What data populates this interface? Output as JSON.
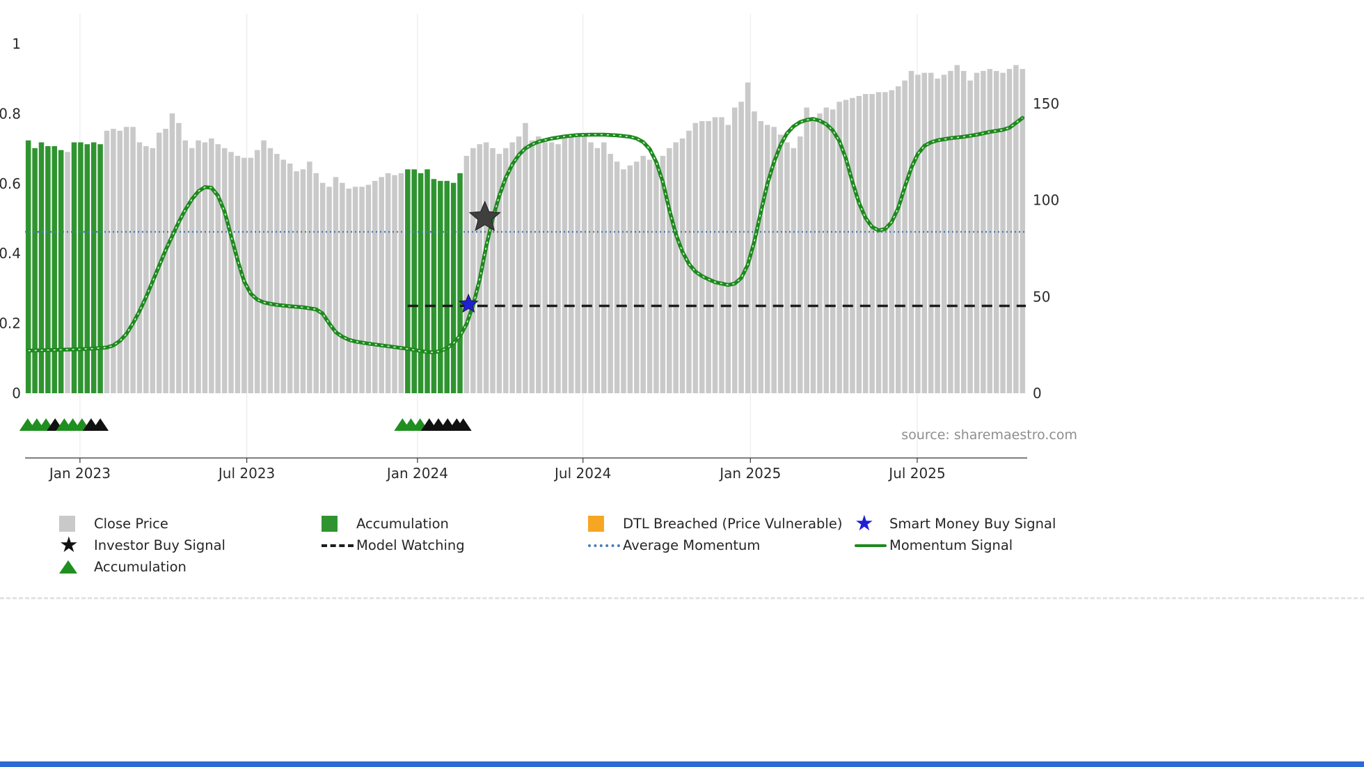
{
  "page": {
    "source_text": "source: sharemaestro.com",
    "background": "#ffffff",
    "bottom_bar_color": "#2b6bd4"
  },
  "chart_data": {
    "type": "bar",
    "title": "",
    "description": "Weekly close price bars with momentum signal overlay and buy-signal markers",
    "y_axis_left": {
      "ticks": [
        0,
        0.2,
        0.4,
        0.6,
        0.8,
        1
      ],
      "range": [
        0,
        1.105
      ]
    },
    "y_axis_right": {
      "ticks": [
        0,
        50,
        100,
        150
      ],
      "range": [
        0,
        203
      ]
    },
    "x_axis": {
      "ticks": [
        {
          "label": "Jan 2023",
          "index": 8.4
        },
        {
          "label": "Jul 2023",
          "index": 33.9
        },
        {
          "label": "Jan 2024",
          "index": 60.0
        },
        {
          "label": "Jul 2024",
          "index": 85.3
        },
        {
          "label": "Jan 2025",
          "index": 110.9
        },
        {
          "label": "Jul 2025",
          "index": 136.4
        }
      ]
    },
    "close_price": {
      "color": "#c9c9c9",
      "values": [
        131,
        127,
        130,
        128,
        128,
        126,
        125,
        130,
        130,
        129,
        130,
        129,
        136,
        137,
        136,
        138,
        138,
        130,
        128,
        127,
        135,
        137,
        145,
        140,
        131,
        127,
        131,
        130,
        132,
        129,
        127,
        125,
        123,
        122,
        122,
        126,
        131,
        127,
        124,
        121,
        119,
        115,
        116,
        120,
        114,
        109,
        107,
        112,
        109,
        106,
        107,
        107,
        108,
        110,
        112,
        114,
        113,
        114,
        116,
        116,
        114,
        116,
        111,
        110,
        110,
        109,
        114,
        123,
        127,
        129,
        130,
        127,
        124,
        127,
        130,
        133,
        140,
        131,
        133,
        130,
        130,
        129,
        133,
        134,
        134,
        133,
        130,
        127,
        130,
        124,
        120,
        116,
        118,
        120,
        123,
        121,
        120,
        123,
        127,
        130,
        132,
        136,
        140,
        141,
        141,
        143,
        143,
        139,
        148,
        151,
        161,
        146,
        141,
        139,
        138,
        134,
        130,
        127,
        133,
        148,
        142,
        145,
        148,
        147,
        151,
        152,
        153,
        154,
        155,
        155,
        156,
        156,
        157,
        159,
        162,
        167,
        165,
        166,
        166,
        163,
        165,
        167,
        170,
        167,
        162,
        166,
        167,
        168,
        167,
        166,
        168,
        170,
        168
      ]
    },
    "accumulation_bars": {
      "color": "#2f9430",
      "indices": [
        0,
        1,
        2,
        3,
        4,
        5,
        7,
        8,
        9,
        10,
        11,
        58,
        59,
        60,
        61,
        62,
        63,
        64,
        65,
        66
      ]
    },
    "momentum_signal": {
      "color": "#1d8a1d",
      "points": [
        [
          0,
          0.122
        ],
        [
          2,
          0.123
        ],
        [
          4,
          0.124
        ],
        [
          6,
          0.125
        ],
        [
          8,
          0.126
        ],
        [
          10,
          0.128
        ],
        [
          12,
          0.131
        ],
        [
          13,
          0.137
        ],
        [
          14,
          0.15
        ],
        [
          15,
          0.17
        ],
        [
          16,
          0.2
        ],
        [
          17,
          0.235
        ],
        [
          18,
          0.275
        ],
        [
          19,
          0.32
        ],
        [
          20,
          0.365
        ],
        [
          21,
          0.41
        ],
        [
          22,
          0.45
        ],
        [
          23,
          0.49
        ],
        [
          24,
          0.525
        ],
        [
          25,
          0.555
        ],
        [
          26,
          0.578
        ],
        [
          27,
          0.59
        ],
        [
          28,
          0.588
        ],
        [
          29,
          0.565
        ],
        [
          30,
          0.52
        ],
        [
          31,
          0.45
        ],
        [
          32,
          0.38
        ],
        [
          33,
          0.32
        ],
        [
          34,
          0.285
        ],
        [
          35,
          0.268
        ],
        [
          36,
          0.26
        ],
        [
          37,
          0.256
        ],
        [
          38,
          0.253
        ],
        [
          40,
          0.249
        ],
        [
          42,
          0.246
        ],
        [
          44,
          0.24
        ],
        [
          45,
          0.228
        ],
        [
          46,
          0.2
        ],
        [
          47,
          0.175
        ],
        [
          48,
          0.162
        ],
        [
          49,
          0.153
        ],
        [
          50,
          0.148
        ],
        [
          52,
          0.142
        ],
        [
          54,
          0.137
        ],
        [
          56,
          0.132
        ],
        [
          58,
          0.127
        ],
        [
          60,
          0.121
        ],
        [
          61,
          0.118
        ],
        [
          62,
          0.117
        ],
        [
          63,
          0.121
        ],
        [
          64,
          0.129
        ],
        [
          65,
          0.143
        ],
        [
          66,
          0.164
        ],
        [
          67,
          0.198
        ],
        [
          68,
          0.252
        ],
        [
          69,
          0.325
        ],
        [
          70,
          0.42
        ],
        [
          71,
          0.5
        ],
        [
          72,
          0.565
        ],
        [
          73,
          0.617
        ],
        [
          74,
          0.655
        ],
        [
          75,
          0.682
        ],
        [
          76,
          0.701
        ],
        [
          77,
          0.712
        ],
        [
          78,
          0.72
        ],
        [
          80,
          0.729
        ],
        [
          82,
          0.735
        ],
        [
          84,
          0.739
        ],
        [
          86,
          0.74
        ],
        [
          88,
          0.74
        ],
        [
          90,
          0.738
        ],
        [
          92,
          0.734
        ],
        [
          93,
          0.729
        ],
        [
          94,
          0.719
        ],
        [
          95,
          0.699
        ],
        [
          96,
          0.662
        ],
        [
          97,
          0.605
        ],
        [
          98,
          0.525
        ],
        [
          99,
          0.455
        ],
        [
          100,
          0.405
        ],
        [
          101,
          0.37
        ],
        [
          102,
          0.348
        ],
        [
          103,
          0.335
        ],
        [
          104,
          0.326
        ],
        [
          105,
          0.318
        ],
        [
          106,
          0.314
        ],
        [
          107,
          0.31
        ],
        [
          108,
          0.314
        ],
        [
          109,
          0.33
        ],
        [
          110,
          0.368
        ],
        [
          111,
          0.435
        ],
        [
          112,
          0.52
        ],
        [
          113,
          0.6
        ],
        [
          114,
          0.662
        ],
        [
          115,
          0.71
        ],
        [
          116,
          0.744
        ],
        [
          117,
          0.764
        ],
        [
          118,
          0.776
        ],
        [
          119,
          0.782
        ],
        [
          120,
          0.785
        ],
        [
          121,
          0.78
        ],
        [
          122,
          0.77
        ],
        [
          123,
          0.752
        ],
        [
          124,
          0.722
        ],
        [
          125,
          0.672
        ],
        [
          126,
          0.605
        ],
        [
          127,
          0.545
        ],
        [
          128,
          0.502
        ],
        [
          129,
          0.476
        ],
        [
          130,
          0.466
        ],
        [
          131,
          0.47
        ],
        [
          132,
          0.49
        ],
        [
          133,
          0.53
        ],
        [
          134,
          0.59
        ],
        [
          135,
          0.645
        ],
        [
          136,
          0.685
        ],
        [
          137,
          0.708
        ],
        [
          138,
          0.718
        ],
        [
          139,
          0.724
        ],
        [
          141,
          0.73
        ],
        [
          143,
          0.734
        ],
        [
          145,
          0.74
        ],
        [
          147,
          0.748
        ],
        [
          149,
          0.754
        ],
        [
          150,
          0.76
        ],
        [
          151,
          0.774
        ],
        [
          152,
          0.788
        ]
      ]
    },
    "average_momentum": {
      "color": "#4a7fb5",
      "value": 0.462
    },
    "model_watching": {
      "color": "#1c1c1c",
      "value": 0.25,
      "start_index": 58.5
    },
    "signals": [
      {
        "key": "investor-buy-signal",
        "marker": "star",
        "color": "#3f3f3f",
        "index": 69.8,
        "value": 0.503,
        "size": 23
      },
      {
        "key": "smart-money-buy-signal",
        "marker": "star",
        "color": "#1f1fd6",
        "index": 67.3,
        "value": 0.255,
        "size": 14
      }
    ],
    "accumulation_markers": {
      "green_color": "#1f8f1f",
      "black_color": "#111111",
      "markers": [
        {
          "index": 0.4,
          "color": "green"
        },
        {
          "index": 1.8,
          "color": "green"
        },
        {
          "index": 3.2,
          "color": "green"
        },
        {
          "index": 4.6,
          "color": "black"
        },
        {
          "index": 6.0,
          "color": "green"
        },
        {
          "index": 7.3,
          "color": "green"
        },
        {
          "index": 8.7,
          "color": "green"
        },
        {
          "index": 10.1,
          "color": "black"
        },
        {
          "index": 11.5,
          "color": "black"
        },
        {
          "index": 57.7,
          "color": "green"
        },
        {
          "index": 59.0,
          "color": "green"
        },
        {
          "index": 60.4,
          "color": "green"
        },
        {
          "index": 61.8,
          "color": "black"
        },
        {
          "index": 63.2,
          "color": "black"
        },
        {
          "index": 64.6,
          "color": "black"
        },
        {
          "index": 66.0,
          "color": "black"
        },
        {
          "index": 67.0,
          "color": "black"
        }
      ]
    }
  },
  "legend": {
    "items": [
      {
        "key": "close-price",
        "swatch": "square",
        "color": "#c9c9c9",
        "label": "Close Price"
      },
      {
        "key": "accumulation-bar",
        "swatch": "square",
        "color": "#2f9430",
        "label": "Accumulation"
      },
      {
        "key": "dtl-breached",
        "swatch": "square",
        "color": "#f5a623",
        "label": "DTL Breached (Price Vulnerable)"
      },
      {
        "key": "smart-money-buy-signal",
        "swatch": "star",
        "color": "#1f1fd6",
        "label": "Smart Money Buy Signal"
      },
      {
        "key": "investor-buy-signal",
        "swatch": "star",
        "color": "#111111",
        "label": "Investor Buy Signal"
      },
      {
        "key": "model-watching",
        "swatch": "dashed-line",
        "color": "#1c1c1c",
        "label": "Model Watching"
      },
      {
        "key": "average-momentum",
        "swatch": "dotted-line",
        "color": "#4a7fb5",
        "label": "Average Momentum"
      },
      {
        "key": "momentum-signal",
        "swatch": "solid-line",
        "color": "#1d8a1d",
        "label": "Momentum Signal"
      },
      {
        "key": "accumulation-marker",
        "swatch": "triangle",
        "color": "#1f8f1f",
        "label": "Accumulation"
      }
    ]
  }
}
